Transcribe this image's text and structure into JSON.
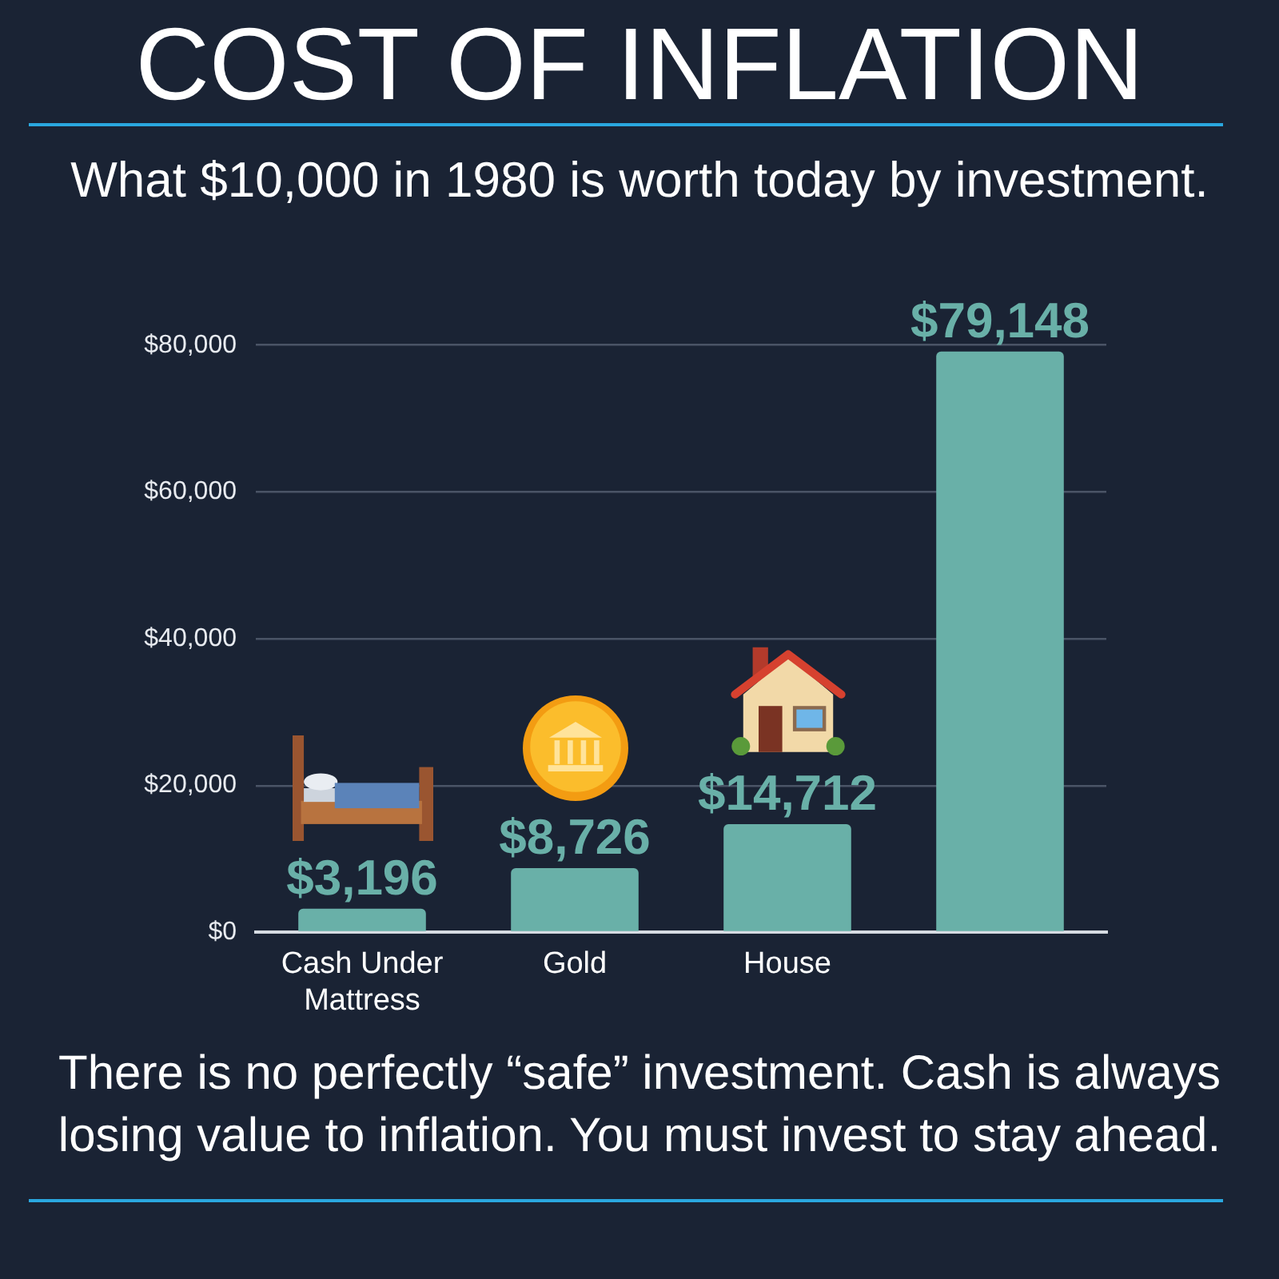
{
  "chart_data": {
    "type": "bar",
    "title": "COST OF INFLATION",
    "subtitle": "What $10,000 in 1980 is worth today by investment.",
    "categories": [
      "Cash Under Mattress",
      "Gold",
      "House",
      null
    ],
    "values": [
      3196,
      8726,
      14712,
      79148
    ],
    "color": "#69b0a8",
    "value_labels": [
      "$3,196",
      "$8,726",
      "$14,712",
      "$79,148"
    ],
    "ylim": [
      0,
      80000
    ],
    "yticks": [
      {
        "value": 0,
        "label": "$0"
      },
      {
        "value": 20000,
        "label": "$20,000"
      },
      {
        "value": 40000,
        "label": "$40,000"
      },
      {
        "value": 60000,
        "label": "$60,000"
      },
      {
        "value": 80000,
        "label": "$80,000"
      }
    ],
    "grid": "y",
    "legend": false,
    "annotations": [
      "There is no perfectly “safe” investment. Cash is always losing value to inflation. You must invest to stay ahead."
    ]
  }
}
